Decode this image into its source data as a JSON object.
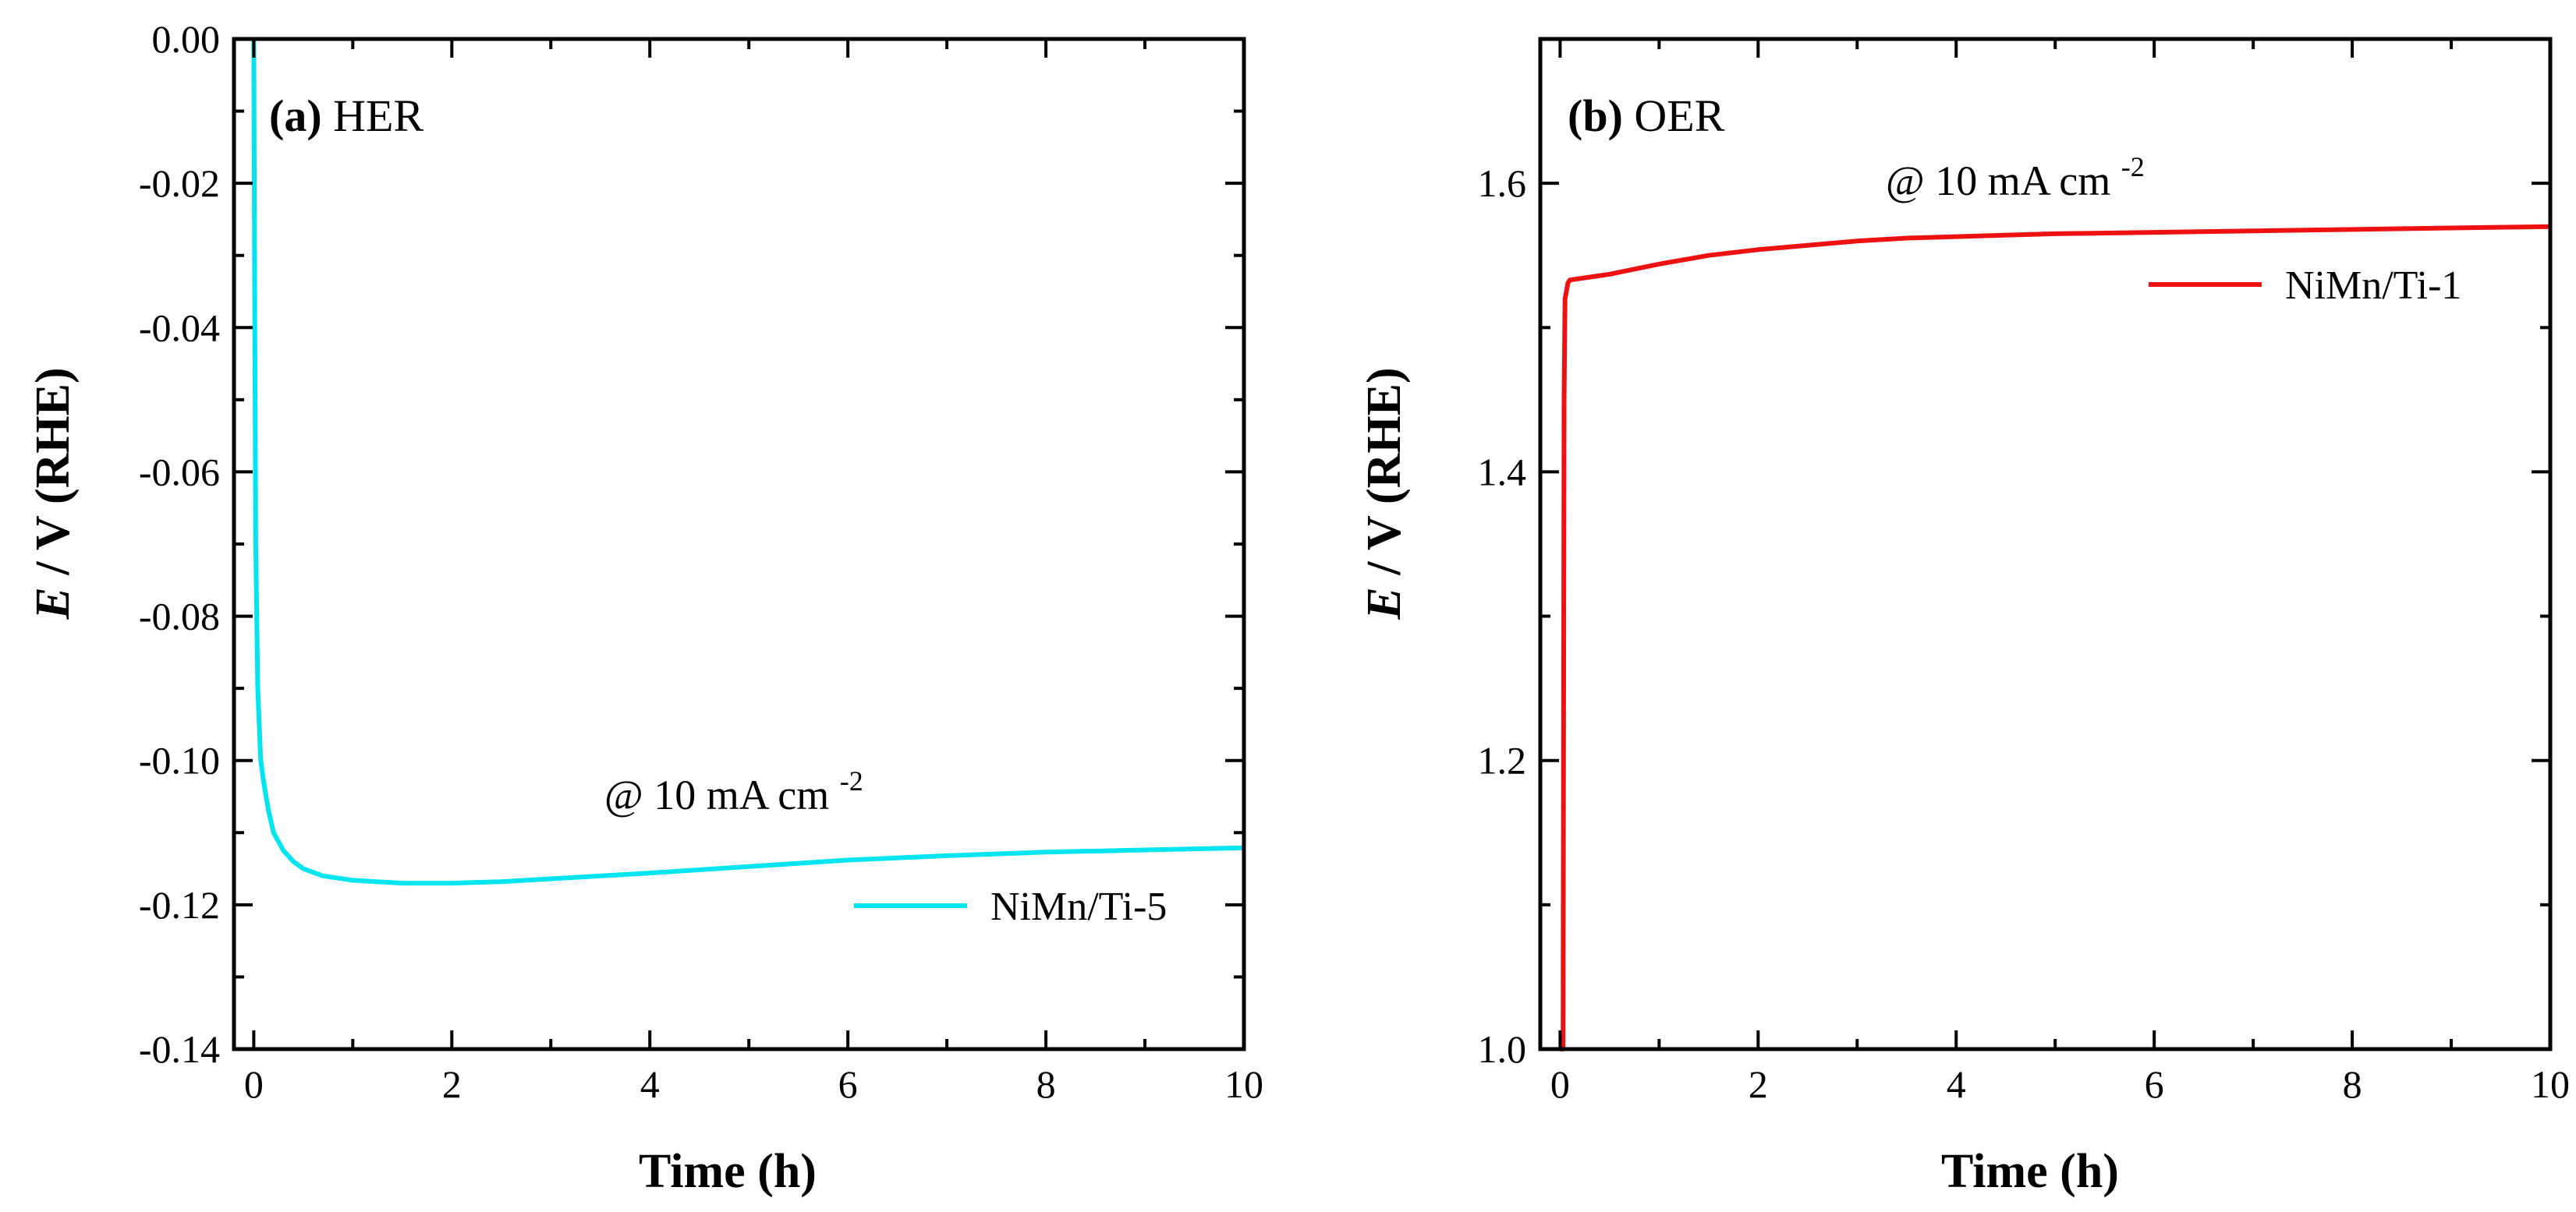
{
  "chart_data": [
    {
      "type": "line",
      "panel_tag": "(a)",
      "panel_title": "HER",
      "annotation": {
        "text": "@ 10 mA cm",
        "superscript": "-2"
      },
      "xlabel": "Time (h)",
      "ylabel_italic": "E",
      "ylabel_rest": " / V (RHE)",
      "xlim": [
        -0.2,
        10
      ],
      "ylim": [
        -0.14,
        0.0
      ],
      "xticks": [
        0,
        2,
        4,
        6,
        8,
        10
      ],
      "xtick_labels": [
        "0",
        "2",
        "4",
        "6",
        "8",
        "10"
      ],
      "yticks": [
        0.0,
        -0.02,
        -0.04,
        -0.06,
        -0.08,
        -0.1,
        -0.12,
        -0.14
      ],
      "ytick_labels": [
        "0.00",
        "-0.02",
        "-0.04",
        "-0.06",
        "-0.08",
        "-0.10",
        "-0.12",
        "-0.14"
      ],
      "legend": "bottom-right",
      "series": [
        {
          "name": "NiMn/Ti-5",
          "color": "#00e5f0",
          "x": [
            0,
            0.01,
            0.02,
            0.04,
            0.07,
            0.1,
            0.15,
            0.2,
            0.3,
            0.4,
            0.5,
            0.7,
            1.0,
            1.5,
            2.0,
            2.5,
            3.0,
            4.0,
            5.0,
            6.0,
            7.0,
            8.0,
            9.0,
            10.0
          ],
          "y": [
            0.0,
            -0.04,
            -0.07,
            -0.09,
            -0.1,
            -0.103,
            -0.107,
            -0.11,
            -0.1125,
            -0.114,
            -0.115,
            -0.116,
            -0.1166,
            -0.117,
            -0.117,
            -0.1168,
            -0.1164,
            -0.1156,
            -0.1147,
            -0.1138,
            -0.1132,
            -0.1127,
            -0.1124,
            -0.1121
          ]
        }
      ]
    },
    {
      "type": "line",
      "panel_tag": "(b)",
      "panel_title": "OER",
      "annotation": {
        "text": "@ 10 mA cm",
        "superscript": "-2"
      },
      "xlabel": "Time (h)",
      "ylabel_italic": "E",
      "ylabel_rest": " / V (RHE)",
      "xlim": [
        -0.2,
        10
      ],
      "ylim": [
        1.0,
        1.7
      ],
      "xticks": [
        0,
        2,
        4,
        6,
        8,
        10
      ],
      "xtick_labels": [
        "0",
        "2",
        "4",
        "6",
        "8",
        "10"
      ],
      "yticks": [
        1.0,
        1.2,
        1.4,
        1.6
      ],
      "ytick_labels": [
        "1.0",
        "1.2",
        "1.4",
        "1.6"
      ],
      "legend": "top-right",
      "series": [
        {
          "name": "NiMn/Ti-1",
          "color": "#ee1111",
          "x": [
            0.0,
            0.03,
            0.04,
            0.05,
            0.08,
            0.1,
            0.3,
            0.5,
            1.0,
            1.5,
            2.0,
            2.5,
            3.0,
            3.5,
            4.0,
            5.0,
            6.0,
            7.0,
            8.0,
            9.0,
            10.0
          ],
          "y": [
            1.0,
            1.0,
            1.45,
            1.52,
            1.531,
            1.533,
            1.535,
            1.537,
            1.544,
            1.55,
            1.554,
            1.557,
            1.56,
            1.562,
            1.563,
            1.565,
            1.566,
            1.567,
            1.568,
            1.569,
            1.57
          ]
        }
      ]
    }
  ]
}
